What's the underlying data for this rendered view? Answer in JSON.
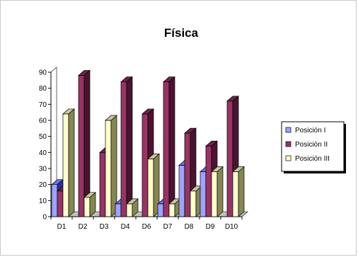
{
  "chart_data": {
    "type": "bar",
    "title": "Física",
    "categories": [
      "D1",
      "D2",
      "D3",
      "D4",
      "D6",
      "D7",
      "D8",
      "D9",
      "D10"
    ],
    "series": [
      {
        "name": "Posición I",
        "values": [
          20,
          0,
          0,
          8,
          0,
          8,
          32,
          28,
          0
        ]
      },
      {
        "name": "Posición II",
        "values": [
          16,
          88,
          40,
          84,
          64,
          84,
          52,
          44,
          72
        ]
      },
      {
        "name": "Posición III",
        "values": [
          64,
          12,
          60,
          8,
          36,
          8,
          16,
          28,
          28
        ]
      }
    ],
    "ylim": [
      0,
      90
    ],
    "yticks": [
      0,
      10,
      20,
      30,
      40,
      50,
      60,
      70,
      80,
      90
    ],
    "xlabel": "",
    "ylabel": "",
    "legend_position": "right",
    "colors": {
      "Posición I": {
        "front": "#9ea3ff",
        "side": "#2b2ba0",
        "top": "#6d71e0"
      },
      "Posición II": {
        "front": "#993366",
        "side": "#4a1430",
        "top": "#6b2448"
      },
      "Posición III": {
        "front": "#ffffcc",
        "side": "#868653",
        "top": "#c8c89a"
      }
    }
  }
}
